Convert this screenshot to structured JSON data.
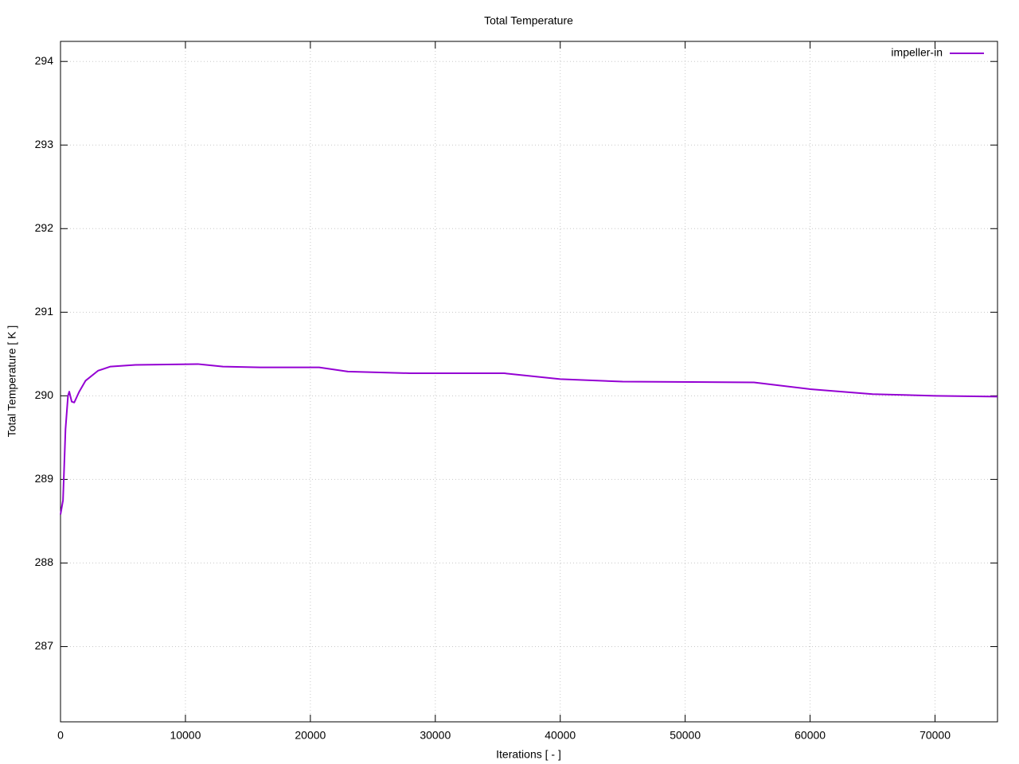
{
  "chart_data": {
    "type": "line",
    "title": "Total Temperature",
    "x_label": "Iterations [ - ]",
    "y_label": "Total Temperature [ K ]",
    "x": [
      0,
      200,
      400,
      600,
      700,
      900,
      1100,
      1500,
      2000,
      3000,
      4000,
      6000,
      11000,
      13000,
      16000,
      20700,
      23000,
      28000,
      35500,
      40000,
      45000,
      55500,
      60000,
      65000,
      70000,
      75000
    ],
    "series": [
      {
        "name": "impeller-in",
        "color": "#9400d3",
        "values": [
          288.58,
          288.75,
          289.6,
          290.0,
          290.05,
          289.93,
          289.92,
          290.05,
          290.18,
          290.3,
          290.35,
          290.37,
          290.38,
          290.35,
          290.34,
          290.34,
          290.29,
          290.27,
          290.27,
          290.2,
          290.17,
          290.16,
          290.08,
          290.02,
          290.0,
          289.99
        ]
      }
    ],
    "xlim": [
      0,
      75000
    ],
    "ylim": [
      286.1,
      294.24
    ],
    "xticks": [
      0,
      10000,
      20000,
      30000,
      40000,
      50000,
      60000,
      70000
    ],
    "yticks": [
      287,
      288,
      289,
      290,
      291,
      292,
      293,
      294
    ],
    "grid": true,
    "legend": "top-right"
  }
}
